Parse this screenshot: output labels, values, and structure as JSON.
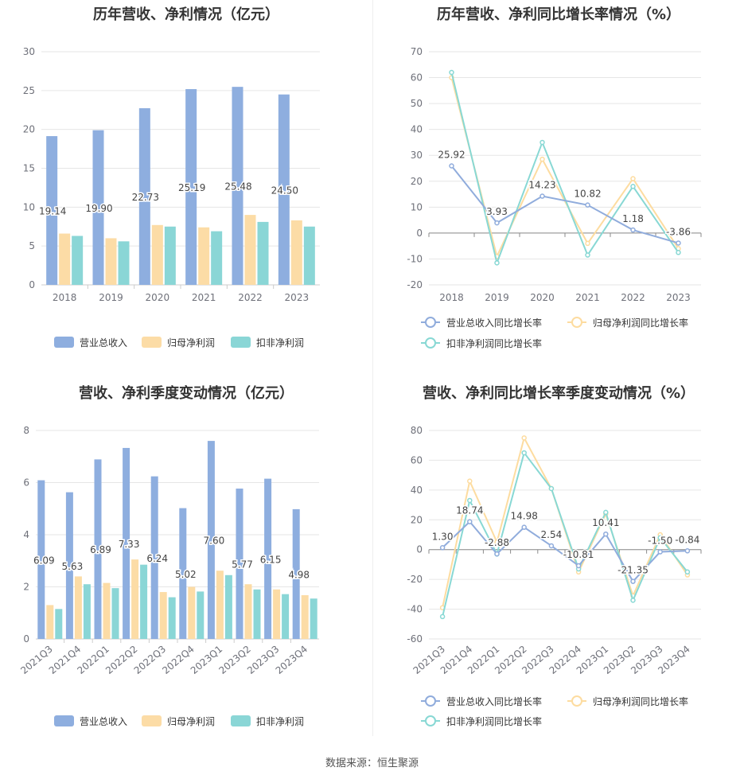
{
  "source": "数据来源：恒生聚源",
  "legend_bar": [
    "营业总收入",
    "归母净利润",
    "扣非净利润"
  ],
  "legend_line": [
    "营业总收入同比增长率",
    "归母净利润同比增长率",
    "扣非净利润同比增长率"
  ],
  "colors": {
    "revenue": "#8eaedf",
    "netprofit": "#fcdca6",
    "deducted": "#8ad6d6",
    "revenue_line": "#90acdc",
    "netprofit_line": "#fddca0",
    "deducted_line": "#88d8d4"
  },
  "chart_data": [
    {
      "type": "bar",
      "title": "历年营收、净利情况（亿元）",
      "categories": [
        "2018",
        "2019",
        "2020",
        "2021",
        "2022",
        "2023"
      ],
      "ylim": [
        0,
        30
      ],
      "yticks": [
        0,
        5,
        10,
        15,
        20,
        25,
        30
      ],
      "series": [
        {
          "name": "营业总收入",
          "values": [
            19.14,
            19.9,
            22.73,
            25.19,
            25.48,
            24.5
          ],
          "labels": [
            "19.14",
            "19.90",
            "22.73",
            "25.19",
            "25.48",
            "24.50"
          ]
        },
        {
          "name": "归母净利润",
          "values": [
            6.6,
            6.0,
            7.7,
            7.4,
            9.0,
            8.3
          ]
        },
        {
          "name": "扣非净利润",
          "values": [
            6.3,
            5.6,
            7.5,
            6.9,
            8.1,
            7.5
          ]
        }
      ],
      "legend": "bottom"
    },
    {
      "type": "line",
      "title": "历年营收、净利同比增长率情况（%）",
      "categories": [
        "2018",
        "2019",
        "2020",
        "2021",
        "2022",
        "2023"
      ],
      "ylim": [
        -20,
        70
      ],
      "yticks": [
        -20,
        -10,
        0,
        10,
        20,
        30,
        40,
        50,
        60,
        70
      ],
      "series": [
        {
          "name": "营业总收入同比增长率",
          "values": [
            25.92,
            3.93,
            14.23,
            10.82,
            1.18,
            -3.86
          ],
          "labels": [
            "25.92",
            "3.93",
            "14.23",
            "10.82",
            "1.18",
            "-3.86"
          ]
        },
        {
          "name": "归母净利润同比增长率",
          "values": [
            60,
            -9,
            28.5,
            -4,
            21,
            -6
          ]
        },
        {
          "name": "扣非净利润同比增长率",
          "values": [
            62,
            -11.5,
            35,
            -8.5,
            18,
            -7.5
          ]
        }
      ],
      "legend": "bottom"
    },
    {
      "type": "bar",
      "title": "营收、净利季度变动情况（亿元）",
      "categories": [
        "2021Q3",
        "2021Q4",
        "2022Q1",
        "2022Q2",
        "2022Q3",
        "2022Q4",
        "2023Q1",
        "2023Q2",
        "2023Q3",
        "2023Q4"
      ],
      "ylim": [
        0,
        8
      ],
      "yticks": [
        0,
        2,
        4,
        6,
        8
      ],
      "series": [
        {
          "name": "营业总收入",
          "values": [
            6.09,
            5.63,
            6.89,
            7.33,
            6.24,
            5.02,
            7.6,
            5.77,
            6.15,
            4.98
          ],
          "labels": [
            "6.09",
            "5.63",
            "6.89",
            "7.33",
            "6.24",
            "5.02",
            "7.60",
            "5.77",
            "6.15",
            "4.98"
          ]
        },
        {
          "name": "归母净利润",
          "values": [
            1.3,
            2.4,
            2.15,
            3.05,
            1.8,
            2.0,
            2.62,
            2.1,
            1.9,
            1.68
          ]
        },
        {
          "name": "扣非净利润",
          "values": [
            1.15,
            2.1,
            1.95,
            2.85,
            1.6,
            1.82,
            2.45,
            1.9,
            1.72,
            1.55
          ]
        }
      ],
      "legend": "bottom"
    },
    {
      "type": "line",
      "title": "营收、净利同比增长率季度变动情况（%）",
      "categories": [
        "2021Q3",
        "2021Q4",
        "2022Q1",
        "2022Q2",
        "2022Q3",
        "2022Q4",
        "2023Q1",
        "2023Q2",
        "2023Q3",
        "2023Q4"
      ],
      "ylim": [
        -60,
        80
      ],
      "yticks": [
        -60,
        -40,
        -20,
        0,
        20,
        40,
        60,
        80
      ],
      "series": [
        {
          "name": "营业总收入同比增长率",
          "values": [
            1.3,
            18.74,
            -2.88,
            14.98,
            2.54,
            -10.81,
            10.41,
            -21.35,
            -1.5,
            -0.84
          ],
          "labels": [
            "1.30",
            "18.74",
            "-2.88",
            "14.98",
            "2.54",
            "-10.81",
            "10.41",
            "-21.35",
            "-1.50",
            "-0.84"
          ]
        },
        {
          "name": "归母净利润同比增长率",
          "values": [
            -39,
            46,
            5,
            75,
            41,
            -15,
            24,
            -31,
            10,
            -17
          ]
        },
        {
          "name": "扣非净利润同比增长率",
          "values": [
            -45,
            33,
            -3,
            65,
            41,
            -13,
            25,
            -34,
            8,
            -15
          ]
        }
      ],
      "legend": "bottom"
    }
  ]
}
